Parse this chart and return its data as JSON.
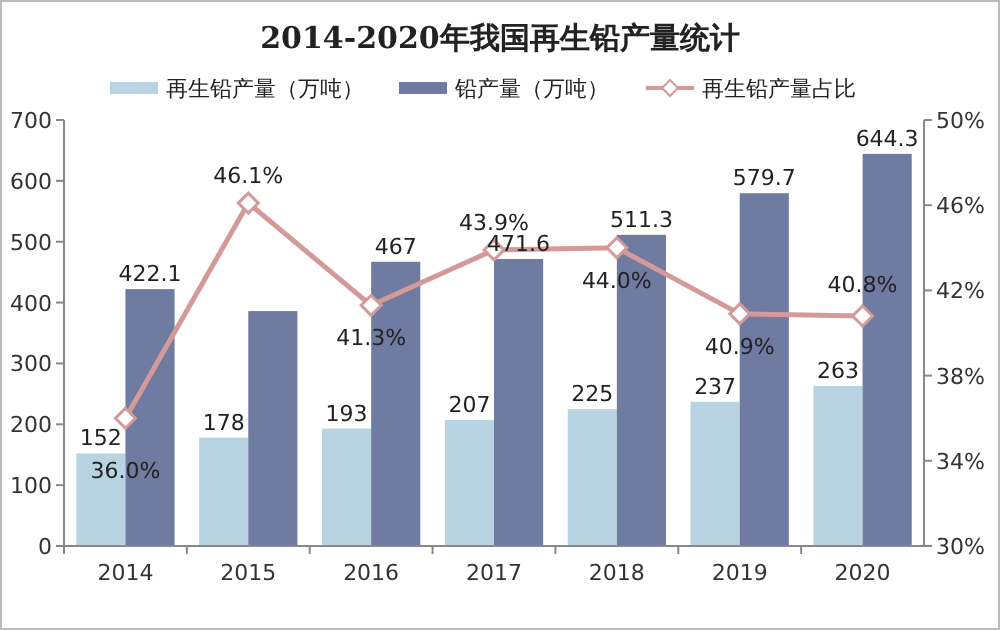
{
  "chart_data": {
    "type": "bar",
    "title": "2014-2020年我国再生铅产量统计",
    "categories": [
      "2014",
      "2015",
      "2016",
      "2017",
      "2018",
      "2019",
      "2020"
    ],
    "series": [
      {
        "name": "再生铅产量（万吨）",
        "color": "#b8d4e3",
        "values": [
          152,
          178,
          193,
          207,
          225,
          237,
          263
        ],
        "value_labels": [
          "152",
          "178",
          "193",
          "207",
          "225",
          "237",
          "263"
        ]
      },
      {
        "name": "铅产量（万吨）",
        "color": "#6f7ba0",
        "values": [
          422.1,
          386,
          467,
          471.6,
          511.3,
          579.7,
          644.3
        ],
        "value_labels": [
          "422.1",
          null,
          "467",
          "471.6",
          "511.3",
          "579.7",
          "644.3"
        ]
      },
      {
        "name": "再生铅产量占比",
        "type": "line",
        "axis": "y2",
        "color": "#d49a9a",
        "marker": "diamond",
        "values": [
          36.0,
          46.1,
          41.3,
          43.9,
          44.0,
          40.9,
          40.8
        ],
        "value_labels": [
          "36.0%",
          "46.1%",
          "41.3%",
          "43.9%",
          "44.0%",
          "40.9%",
          "40.8%"
        ]
      }
    ],
    "ylim": [
      0,
      700
    ],
    "yticks": [
      0,
      100,
      200,
      300,
      400,
      500,
      600,
      700
    ],
    "y2lim": [
      30,
      50
    ],
    "y2ticks": [
      {
        "value": 30,
        "label": "30%"
      },
      {
        "value": 34,
        "label": "34%"
      },
      {
        "value": 38,
        "label": "38%"
      },
      {
        "value": 42,
        "label": "42%"
      },
      {
        "value": 46,
        "label": "46%"
      },
      {
        "value": 50,
        "label": "50%"
      }
    ],
    "legend": "top"
  }
}
